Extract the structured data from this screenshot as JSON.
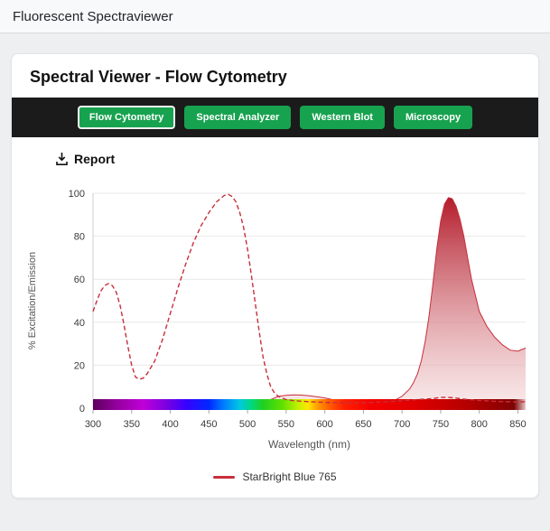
{
  "topbar": {
    "title": "Fluorescent Spectraviewer"
  },
  "card": {
    "title": "Spectral Viewer - Flow Cytometry",
    "tabs": [
      {
        "label": "Flow Cytometry",
        "active": true
      },
      {
        "label": "Spectral Analyzer",
        "active": false
      },
      {
        "label": "Western Blot",
        "active": false
      },
      {
        "label": "Microscopy",
        "active": false
      }
    ],
    "report_label": "Report"
  },
  "colors": {
    "button_green": "#17a24f",
    "header_bar": "#1b1b1b",
    "accent_red": "#c62f3b",
    "fill_top_red": "#b01322",
    "fill_bottom_pink": "#f5dadb"
  },
  "chart_data": {
    "type": "area",
    "title": "",
    "xlabel": "Wavelength (nm)",
    "ylabel": "% Excitation/Emission",
    "xlim": [
      300,
      860
    ],
    "ylim": [
      0,
      100
    ],
    "xticks": [
      300,
      350,
      400,
      450,
      500,
      550,
      600,
      650,
      700,
      750,
      800,
      850
    ],
    "yticks": [
      0,
      20,
      40,
      60,
      80,
      100
    ],
    "grid": true,
    "legend_position": "bottom",
    "legend": [
      {
        "label": "StarBright Blue 765",
        "color": "#c62f3b"
      }
    ],
    "series": [
      {
        "name": "StarBright Blue 765 Excitation",
        "style": "dashed",
        "x": [
          300,
          305,
          310,
          315,
          320,
          325,
          330,
          335,
          340,
          345,
          350,
          355,
          360,
          365,
          370,
          380,
          390,
          400,
          410,
          420,
          430,
          440,
          450,
          460,
          470,
          475,
          480,
          485,
          490,
          495,
          500,
          505,
          510,
          515,
          520,
          525,
          530,
          535,
          540,
          550,
          560,
          580,
          600,
          620,
          650,
          680,
          700,
          720,
          740,
          750,
          760,
          770,
          780,
          800,
          820,
          840,
          860
        ],
        "y": [
          45,
          50,
          54.5,
          57,
          58,
          57,
          54,
          48,
          39,
          29,
          20,
          14.5,
          13.5,
          14,
          16,
          22,
          32,
          44,
          56,
          67,
          77,
          85,
          91,
          96,
          99,
          99.5,
          98.5,
          96,
          91,
          84,
          74,
          62,
          49,
          36,
          24,
          16,
          10,
          7,
          5.5,
          4,
          3.5,
          3,
          2.7,
          2.5,
          2.5,
          3,
          3.5,
          4,
          4.5,
          5,
          5,
          4.7,
          4.2,
          3.6,
          3.2,
          3,
          3
        ]
      },
      {
        "name": "StarBright Blue 765 Emission",
        "style": "filled",
        "x": [
          300,
          400,
          480,
          500,
          510,
          520,
          530,
          540,
          550,
          560,
          570,
          580,
          590,
          600,
          610,
          620,
          630,
          640,
          650,
          660,
          670,
          680,
          690,
          700,
          710,
          715,
          720,
          725,
          730,
          735,
          740,
          745,
          750,
          755,
          760,
          765,
          770,
          775,
          780,
          785,
          790,
          800,
          810,
          820,
          830,
          840,
          850,
          860
        ],
        "y": [
          0.3,
          0.3,
          0.5,
          1,
          1.5,
          2.5,
          4,
          5.5,
          6,
          6.2,
          6.1,
          5.8,
          5.3,
          4.8,
          4,
          3.2,
          2.6,
          2.2,
          2,
          2,
          2.2,
          2.7,
          3.6,
          5.5,
          9,
          12,
          16,
          22,
          31,
          43,
          58,
          74,
          87,
          95,
          98,
          97.5,
          94,
          88,
          80,
          70,
          60,
          45,
          38,
          33,
          29.5,
          27,
          26.5,
          28
        ]
      }
    ],
    "spectrum_bar": {
      "stops": [
        {
          "wl": 300,
          "color": "#5c005c"
        },
        {
          "wl": 330,
          "color": "#93009c"
        },
        {
          "wl": 365,
          "color": "#c000d8"
        },
        {
          "wl": 395,
          "color": "#7a00e0"
        },
        {
          "wl": 420,
          "color": "#3800ff"
        },
        {
          "wl": 450,
          "color": "#0028ff"
        },
        {
          "wl": 470,
          "color": "#0080ff"
        },
        {
          "wl": 490,
          "color": "#00c8e0"
        },
        {
          "wl": 505,
          "color": "#00d880"
        },
        {
          "wl": 520,
          "color": "#20d020"
        },
        {
          "wl": 545,
          "color": "#60e000"
        },
        {
          "wl": 565,
          "color": "#c0f000"
        },
        {
          "wl": 578,
          "color": "#ffe800"
        },
        {
          "wl": 590,
          "color": "#ffa000"
        },
        {
          "wl": 605,
          "color": "#ff6000"
        },
        {
          "wl": 625,
          "color": "#ff2000"
        },
        {
          "wl": 660,
          "color": "#f40000"
        },
        {
          "wl": 720,
          "color": "#dc0000"
        },
        {
          "wl": 780,
          "color": "#b80000"
        },
        {
          "wl": 820,
          "color": "#980000"
        },
        {
          "wl": 845,
          "color": "#7c0404"
        },
        {
          "wl": 860,
          "color": "#e8c8c8"
        }
      ]
    }
  }
}
